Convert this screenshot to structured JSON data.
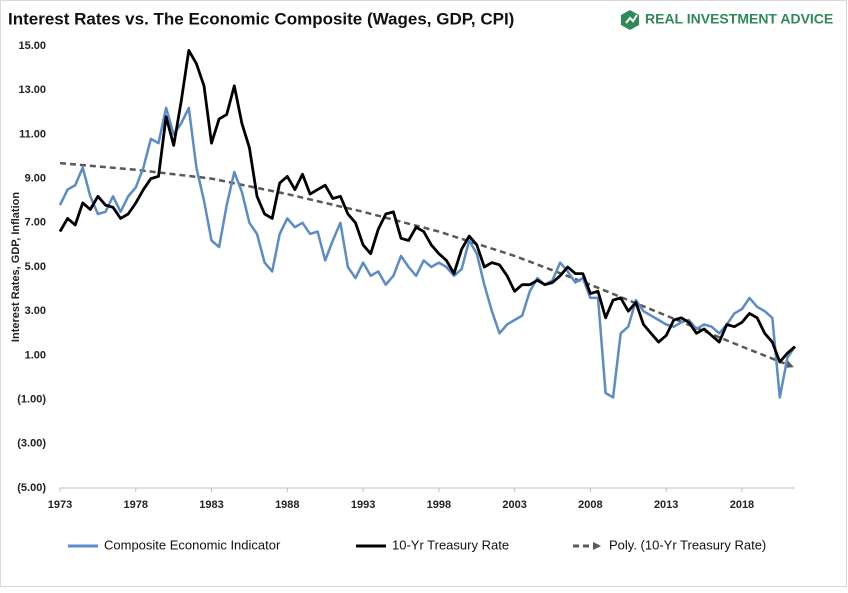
{
  "chart_data": {
    "type": "line",
    "title": "Interest Rates vs. The Economic Composite (Wages, GDP, CPI)",
    "logo": "REAL INVESTMENT ADVICE",
    "y_label": "Interest Rates, GDP, Inflation",
    "x": [
      1973,
      1973.5,
      1974,
      1974.5,
      1975,
      1975.5,
      1976,
      1976.5,
      1977,
      1977.5,
      1978,
      1978.5,
      1979,
      1979.5,
      1980,
      1980.5,
      1981,
      1981.5,
      1982,
      1982.5,
      1983,
      1983.5,
      1984,
      1984.5,
      1985,
      1985.5,
      1986,
      1986.5,
      1987,
      1987.5,
      1988,
      1988.5,
      1989,
      1989.5,
      1990,
      1990.5,
      1991,
      1991.5,
      1992,
      1992.5,
      1993,
      1993.5,
      1994,
      1994.5,
      1995,
      1995.5,
      1996,
      1996.5,
      1997,
      1997.5,
      1998,
      1998.5,
      1999,
      1999.5,
      2000,
      2000.5,
      2001,
      2001.5,
      2002,
      2002.5,
      2003,
      2003.5,
      2004,
      2004.5,
      2005,
      2005.5,
      2006,
      2006.5,
      2007,
      2007.5,
      2008,
      2008.5,
      2009,
      2009.5,
      2010,
      2010.5,
      2011,
      2011.5,
      2012,
      2012.5,
      2013,
      2013.5,
      2014,
      2014.5,
      2015,
      2015.5,
      2016,
      2016.5,
      2017,
      2017.5,
      2018,
      2018.5,
      2019,
      2019.5,
      2020,
      2020.5,
      2021,
      2021.5
    ],
    "series": [
      {
        "name": "Composite Economic Indicator",
        "color": "#5b8cc8",
        "values": [
          7.8,
          8.5,
          8.7,
          9.5,
          8.2,
          7.4,
          7.5,
          8.2,
          7.5,
          8.2,
          8.6,
          9.5,
          10.8,
          10.6,
          12.2,
          11.0,
          11.5,
          12.2,
          9.5,
          8.0,
          6.2,
          5.9,
          7.8,
          9.3,
          8.4,
          7.0,
          6.5,
          5.2,
          4.8,
          6.5,
          7.2,
          6.8,
          7.0,
          6.5,
          6.6,
          5.3,
          6.2,
          7.0,
          5.0,
          4.5,
          5.2,
          4.6,
          4.8,
          4.2,
          4.6,
          5.5,
          5.0,
          4.6,
          5.3,
          5.0,
          5.2,
          5.0,
          4.6,
          4.9,
          6.2,
          5.6,
          4.2,
          3.0,
          2.0,
          2.4,
          2.6,
          2.8,
          3.9,
          4.5,
          4.2,
          4.4,
          5.2,
          4.8,
          4.3,
          4.5,
          3.6,
          3.6,
          -0.7,
          -0.9,
          2.0,
          2.3,
          3.5,
          3.0,
          2.8,
          2.6,
          2.4,
          2.3,
          2.5,
          2.6,
          2.2,
          2.4,
          2.3,
          2.0,
          2.4,
          2.9,
          3.1,
          3.6,
          3.2,
          3.0,
          2.7,
          -0.9,
          0.9,
          1.4
        ]
      },
      {
        "name": "10-Yr Treasury Rate",
        "color": "#000000",
        "values": [
          6.6,
          7.2,
          6.9,
          7.9,
          7.6,
          8.2,
          7.8,
          7.7,
          7.2,
          7.4,
          7.9,
          8.5,
          9.0,
          9.1,
          11.8,
          10.5,
          12.5,
          14.8,
          14.2,
          13.2,
          10.6,
          11.7,
          11.9,
          13.2,
          11.5,
          10.4,
          8.2,
          7.4,
          7.2,
          8.8,
          9.1,
          8.5,
          9.2,
          8.3,
          8.5,
          8.7,
          8.1,
          8.2,
          7.4,
          7.0,
          6.0,
          5.6,
          6.7,
          7.4,
          7.5,
          6.3,
          6.2,
          6.8,
          6.6,
          6.0,
          5.6,
          5.3,
          4.7,
          5.8,
          6.4,
          6.0,
          5.0,
          5.2,
          5.1,
          4.6,
          3.9,
          4.2,
          4.2,
          4.4,
          4.2,
          4.3,
          4.6,
          5.0,
          4.7,
          4.7,
          3.8,
          3.9,
          2.7,
          3.5,
          3.6,
          3.0,
          3.4,
          2.4,
          2.0,
          1.6,
          1.9,
          2.6,
          2.7,
          2.5,
          2.0,
          2.2,
          1.9,
          1.6,
          2.4,
          2.3,
          2.5,
          2.9,
          2.7,
          2.0,
          1.6,
          0.7,
          1.1,
          1.4
        ]
      }
    ],
    "trendline": {
      "name": "Poly. (10-Yr Treasury Rate)",
      "color": "#595959",
      "x": [
        1973,
        1978,
        1983,
        1988,
        1993,
        1998,
        2003,
        2008,
        2013,
        2018,
        2021.3
      ],
      "values": [
        9.7,
        9.4,
        9.0,
        8.3,
        7.5,
        6.6,
        5.5,
        4.2,
        2.8,
        1.4,
        0.5
      ]
    },
    "xlim": [
      1973,
      2021.5
    ],
    "xticks": [
      1973,
      1978,
      1983,
      1988,
      1993,
      1998,
      2003,
      2008,
      2013,
      2018
    ],
    "ylim": [
      -5,
      15
    ],
    "yticks": [
      {
        "value": 15,
        "label": "15.00"
      },
      {
        "value": 13,
        "label": "13.00"
      },
      {
        "value": 11,
        "label": "11.00"
      },
      {
        "value": 9,
        "label": "9.00"
      },
      {
        "value": 7,
        "label": "7.00"
      },
      {
        "value": 5,
        "label": "5.00"
      },
      {
        "value": 3,
        "label": "3.00"
      },
      {
        "value": 1,
        "label": "1.00"
      },
      {
        "value": -1,
        "label": "(1.00)"
      },
      {
        "value": -3,
        "label": "(3.00)"
      },
      {
        "value": -5,
        "label": "(5.00)"
      }
    ],
    "grid": false
  }
}
